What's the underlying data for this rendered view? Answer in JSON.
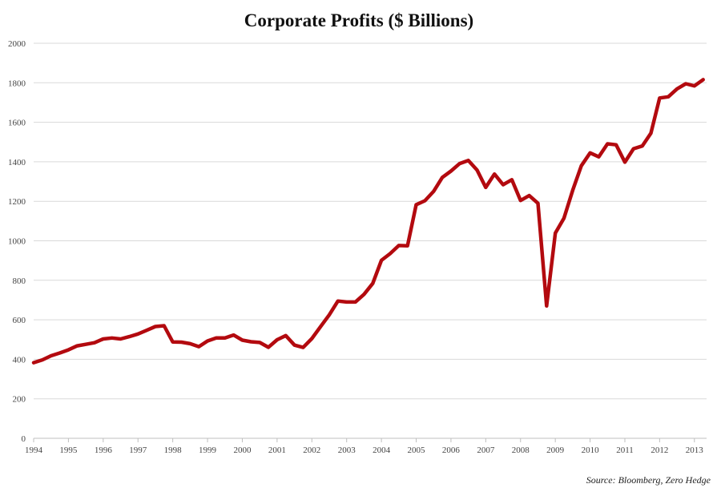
{
  "chart_data": {
    "type": "line",
    "title": "Corporate Profits ($ Billions)",
    "xlabel": "",
    "ylabel": "",
    "source": "Source: Bloomberg, Zero Hedge",
    "ylim": [
      0,
      2000
    ],
    "xlim": [
      1994.0,
      2013.35
    ],
    "grid": true,
    "legend": "none",
    "y_ticks": [
      0,
      200,
      400,
      600,
      800,
      1000,
      1200,
      1400,
      1600,
      1800,
      2000
    ],
    "x_ticks": [
      "1994",
      "1995",
      "1996",
      "1997",
      "1998",
      "1999",
      "2000",
      "2001",
      "2002",
      "2003",
      "2004",
      "2005",
      "2006",
      "2007",
      "2008",
      "2009",
      "2010",
      "2011",
      "2012",
      "2013"
    ],
    "colors": {
      "line": "#b30a0f",
      "grid": "#d9d9d9"
    },
    "series": [
      {
        "x": [
          1994.0,
          1994.25,
          1994.5,
          1994.75,
          1995.0,
          1995.25,
          1995.5,
          1995.75,
          1996.0,
          1996.25,
          1996.5,
          1996.75,
          1997.0,
          1997.25,
          1997.5,
          1997.75,
          1998.0,
          1998.25,
          1998.5,
          1998.75,
          1999.0,
          1999.25,
          1999.5,
          1999.75,
          2000.0,
          2000.25,
          2000.5,
          2000.75,
          2001.0,
          2001.25,
          2001.5,
          2001.75,
          2002.0,
          2002.25,
          2002.5,
          2002.75,
          2003.0,
          2003.25,
          2003.5,
          2003.75,
          2004.0,
          2004.25,
          2004.5,
          2004.75,
          2005.0,
          2005.25,
          2005.5,
          2005.75,
          2006.0,
          2006.25,
          2006.5,
          2006.75,
          2007.0,
          2007.25,
          2007.5,
          2007.75,
          2008.0,
          2008.25,
          2008.5,
          2008.75,
          2009.0,
          2009.25,
          2009.5,
          2009.75,
          2010.0,
          2010.25,
          2010.5,
          2010.75,
          2011.0,
          2011.25,
          2011.5,
          2011.75,
          2012.0,
          2012.25,
          2012.5,
          2012.75,
          2013.0,
          2013.25
        ],
        "values": [
          383,
          397,
          418,
          432,
          448,
          468,
          476,
          484,
          503,
          508,
          503,
          515,
          528,
          547,
          566,
          570,
          488,
          487,
          479,
          464,
          493,
          508,
          508,
          523,
          497,
          489,
          485,
          461,
          499,
          520,
          472,
          460,
          505,
          565,
          625,
          695,
          690,
          690,
          729,
          784,
          901,
          935,
          976,
          975,
          1183,
          1203,
          1250,
          1321,
          1353,
          1391,
          1407,
          1358,
          1270,
          1338,
          1284,
          1309,
          1204,
          1229,
          1190,
          670,
          1039,
          1115,
          1256,
          1380,
          1445,
          1425,
          1491,
          1486,
          1398,
          1466,
          1480,
          1545,
          1723,
          1729,
          1769,
          1795,
          1784,
          1816
        ]
      }
    ]
  }
}
